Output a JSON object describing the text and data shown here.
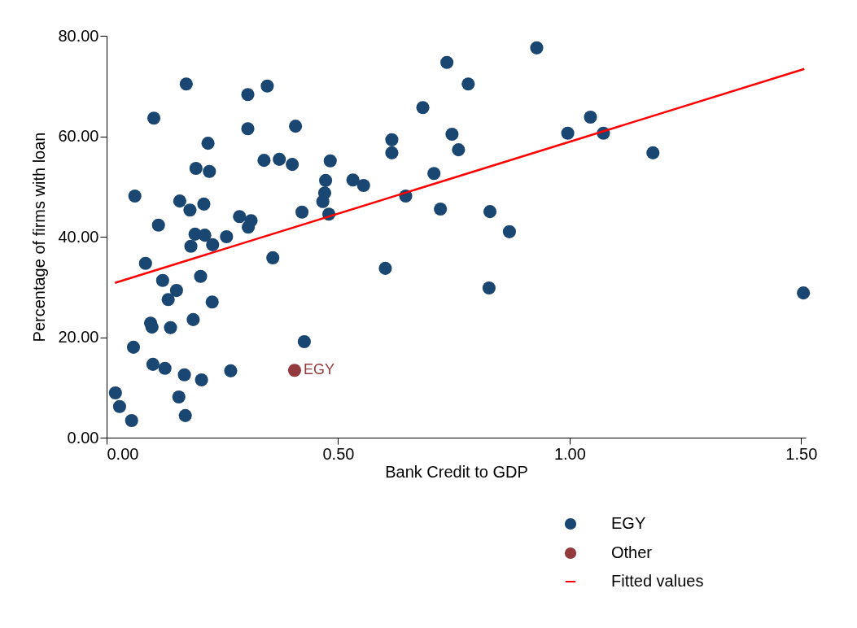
{
  "chart_data": {
    "type": "scatter",
    "xlabel": "Bank Credit to GDP",
    "ylabel": "Percentage of firms with loan",
    "xlim": [
      0,
      1.51
    ],
    "ylim": [
      0,
      80
    ],
    "xticks": [
      {
        "value": 0,
        "label": "0.00"
      },
      {
        "value": 0.5,
        "label": "0.50"
      },
      {
        "value": 1,
        "label": "1.00"
      },
      {
        "value": 1.5,
        "label": "1.50"
      }
    ],
    "yticks": [
      {
        "value": 0,
        "label": "0.00"
      },
      {
        "value": 20,
        "label": "20.00"
      },
      {
        "value": 40,
        "label": "40.00"
      },
      {
        "value": 60,
        "label": "60.00"
      },
      {
        "value": 80,
        "label": "80.00"
      }
    ],
    "grid": false,
    "legend": "bottom right",
    "series": [
      {
        "name": "EGY",
        "color": "#1a4672",
        "marker": "circle",
        "x": [
          0.019,
          0.028,
          0.054,
          0.058,
          0.061,
          0.084,
          0.095,
          0.098,
          0.102,
          0.1,
          0.112,
          0.121,
          0.126,
          0.133,
          0.138,
          0.151,
          0.156,
          0.158,
          0.172,
          0.168,
          0.17,
          0.18,
          0.182,
          0.187,
          0.193,
          0.191,
          0.203,
          0.205,
          0.21,
          0.212,
          0.219,
          0.222,
          0.229,
          0.228,
          0.259,
          0.268,
          0.287,
          0.305,
          0.305,
          0.306,
          0.312,
          0.34,
          0.347,
          0.359,
          0.373,
          0.401,
          0.408,
          0.422,
          0.427,
          0.467,
          0.471,
          0.473,
          0.48,
          0.483,
          0.532,
          0.555,
          0.602,
          0.616,
          0.616,
          0.646,
          0.683,
          0.707,
          0.721,
          0.735,
          0.746,
          0.76,
          0.781,
          0.826,
          0.828,
          0.87,
          0.929,
          0.996,
          1.045,
          1.073,
          1.18,
          1.505
        ],
        "values": [
          8.9,
          6.2,
          3.4,
          18.0,
          48.1,
          34.7,
          22.8,
          22.0,
          63.6,
          14.6,
          42.3,
          31.3,
          13.8,
          27.5,
          21.9,
          29.3,
          8.1,
          47.1,
          70.4,
          12.5,
          4.4,
          45.3,
          38.1,
          23.5,
          53.6,
          40.5,
          32.1,
          11.5,
          46.5,
          40.3,
          58.6,
          53.0,
          38.4,
          27.0,
          40.0,
          13.3,
          44.0,
          68.3,
          61.5,
          41.9,
          43.2,
          55.2,
          70.0,
          35.8,
          55.4,
          54.4,
          62.0,
          44.9,
          19.1,
          47.0,
          48.7,
          51.2,
          44.5,
          55.1,
          51.3,
          50.2,
          33.7,
          59.3,
          56.7,
          48.1,
          65.7,
          52.6,
          45.5,
          74.7,
          60.4,
          57.3,
          70.4,
          29.8,
          45.0,
          41.0,
          77.6,
          60.6,
          63.8,
          60.6,
          56.7,
          28.8
        ]
      },
      {
        "name": "Other",
        "color": "#933a3e",
        "marker": "circle",
        "x": [
          0.406
        ],
        "values": [
          13.4
        ]
      },
      {
        "name": "Fitted values",
        "color": "#ff0000",
        "type": "line",
        "marker": "none",
        "line_style": "solid",
        "x": [
          0.018,
          1.507
        ],
        "values": [
          30.8,
          73.4
        ]
      }
    ],
    "annotations": [
      {
        "text": "EGY",
        "x": 0.406,
        "y": 13.4
      }
    ]
  }
}
